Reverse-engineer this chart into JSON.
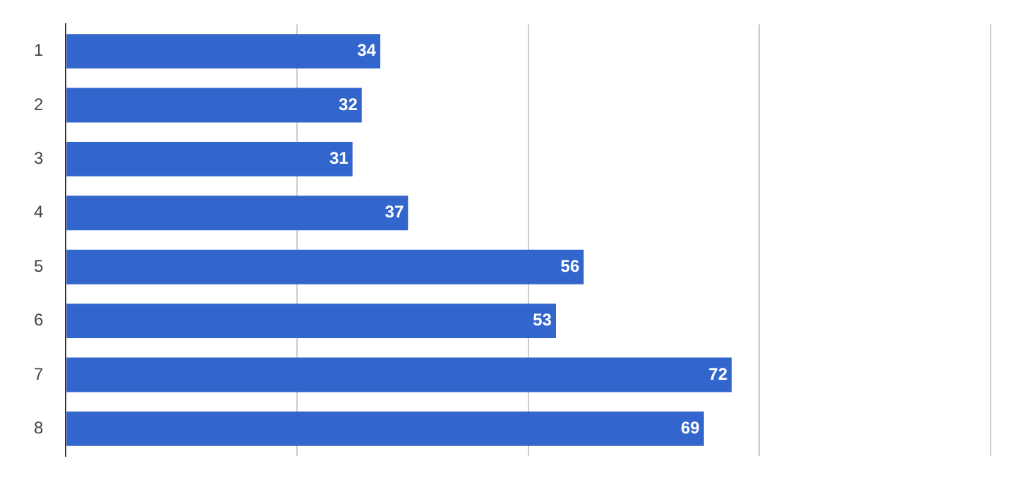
{
  "chart_data": {
    "type": "bar",
    "orientation": "horizontal",
    "categories": [
      "1",
      "2",
      "3",
      "4",
      "5",
      "6",
      "7",
      "8"
    ],
    "values": [
      34,
      32,
      31,
      37,
      56,
      53,
      72,
      69
    ],
    "color": "#3366cc",
    "xlim": [
      0,
      100
    ],
    "xticks": [
      {
        "value": 0,
        "label": null
      },
      {
        "value": 25,
        "label": null
      },
      {
        "value": 50,
        "label": null
      },
      {
        "value": 75,
        "label": null
      },
      {
        "value": 100,
        "label": null
      }
    ],
    "grid": "x",
    "data_labels": true,
    "tick_labels": "y",
    "legend": false
  }
}
